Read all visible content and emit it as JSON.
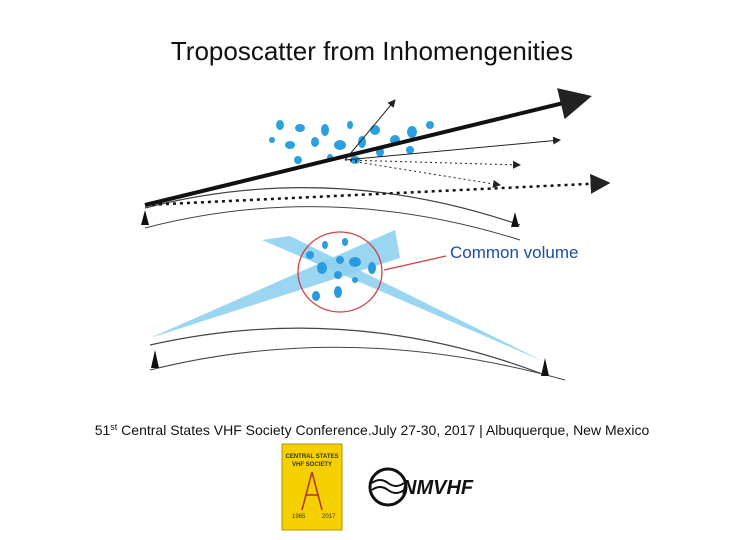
{
  "header": {
    "title": "Troposcatter from Inhomengenities"
  },
  "diagram": {
    "label": "Common volume"
  },
  "footer": {
    "number": "51",
    "superscript": "st",
    "text": " Central States VHF Society Conference.July 27-30, 2017 | Albuquerque, New Mexico"
  },
  "logos": {
    "left": {
      "line1": "CENTRAL STATES",
      "line2": "VHF SOCIETY",
      "start": "1965",
      "end": "2017"
    },
    "right": {
      "name": "NMVHF"
    }
  }
}
